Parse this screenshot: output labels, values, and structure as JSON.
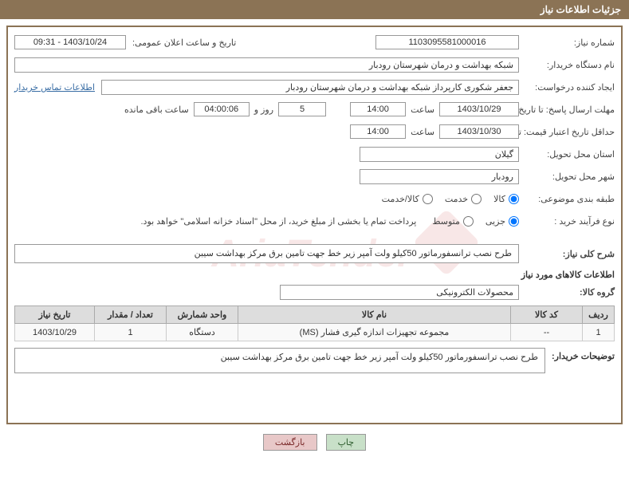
{
  "header": {
    "title": "جزئیات اطلاعات نیاز"
  },
  "fields": {
    "need_number_label": "شماره نیاز:",
    "need_number": "1103095581000016",
    "announce_label": "تاریخ و ساعت اعلان عمومی:",
    "announce_value": "1403/10/24 - 09:31",
    "buyer_org_label": "نام دستگاه خریدار:",
    "buyer_org": "شبکه بهداشت و درمان شهرستان رودبار",
    "requester_label": "ایجاد کننده درخواست:",
    "requester": "جعفر شکوری کارپرداز شبکه بهداشت و درمان شهرستان رودبار",
    "contact_link": "اطلاعات تماس خریدار",
    "deadline_send_label": "مهلت ارسال پاسخ: تا تاریخ:",
    "deadline_date": "1403/10/29",
    "deadline_time": "14:00",
    "time_word": "ساعت",
    "days_remaining": "5",
    "days_word": "روز و",
    "time_remaining": "04:00:06",
    "remaining_word": "ساعت باقی مانده",
    "min_valid_label": "حداقل تاریخ اعتبار قیمت: تا تاریخ:",
    "min_valid_date": "1403/10/30",
    "min_valid_time": "14:00",
    "delivery_province_label": "استان محل تحویل:",
    "delivery_province": "گیلان",
    "delivery_city_label": "شهر محل تحویل:",
    "delivery_city": "رودبار",
    "category_label": "طبقه بندی موضوعی:",
    "cat_goods": "کالا",
    "cat_service": "خدمت",
    "cat_goods_service": "کالا/خدمت",
    "process_label": "نوع فرآیند خرید :",
    "proc_partial": "جزیی",
    "proc_medium": "متوسط",
    "payment_note": "پرداخت تمام یا بخشی از مبلغ خرید، از محل \"اسناد خزانه اسلامی\" خواهد بود.",
    "overview_label": "شرح کلی نیاز:",
    "overview_text": "طرح نصب ترانسفورماتور 50کیلو ولت آمپر زیر خط جهت تامین برق مرکز بهداشت سیبن",
    "goods_info_label": "اطلاعات کالاهای مورد نیاز",
    "goods_group_label": "گروه کالا:",
    "goods_group": "محصولات الکترونیکی",
    "buyer_desc_label": "توضیحات خریدار:",
    "buyer_desc": "طرح نصب ترانسفورماتور 50کیلو ولت آمپر زیر خط جهت تامین برق مرکز بهداشت سیبن"
  },
  "table": {
    "headers": {
      "row": "ردیف",
      "code": "کد کالا",
      "name": "نام کالا",
      "unit": "واحد شمارش",
      "qty": "تعداد / مقدار",
      "need_date": "تاریخ نیاز"
    },
    "rows": [
      {
        "row": "1",
        "code": "--",
        "name": "مجموعه تجهیزات اندازه گیری فشار (MS)",
        "unit": "دستگاه",
        "qty": "1",
        "need_date": "1403/10/29"
      }
    ]
  },
  "buttons": {
    "print": "چاپ",
    "back": "بازگشت"
  },
  "colors": {
    "header_bg": "#8b7355",
    "border": "#8b7355",
    "link": "#3a6ea5",
    "btn_print_bg": "#c8e0c8",
    "btn_back_bg": "#e8c8c8"
  }
}
